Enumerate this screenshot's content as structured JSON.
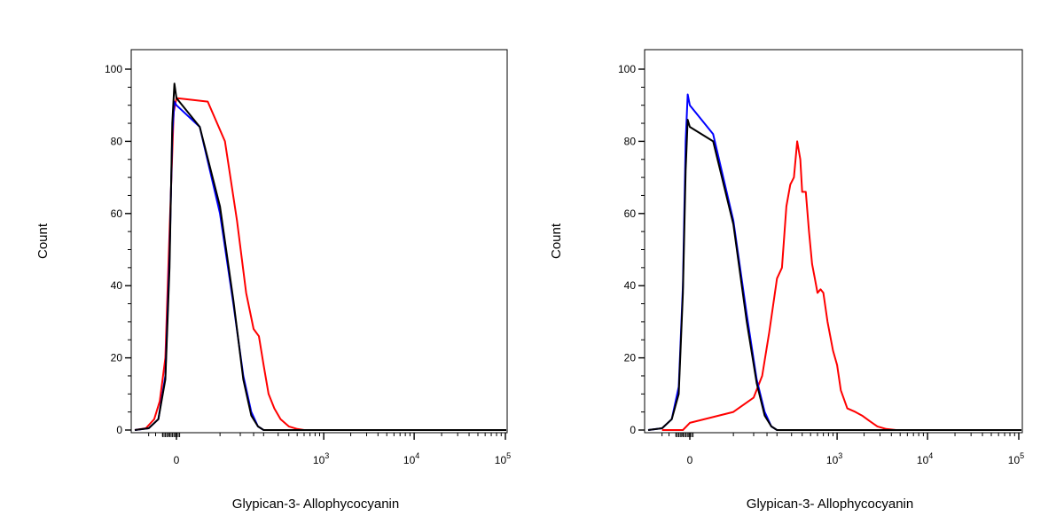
{
  "chart_data": [
    {
      "type": "line",
      "xlabel": "Glypican-3- Allophycocyanin",
      "ylabel": "Count",
      "ylim": [
        0,
        100
      ],
      "xscale": "biexponential",
      "grid": false,
      "y_ticks": [
        {
          "value": 0,
          "label": "0"
        },
        {
          "value": 20,
          "label": "20"
        },
        {
          "value": 40,
          "label": "40"
        },
        {
          "value": 60,
          "label": "60"
        },
        {
          "value": 80,
          "label": "80"
        },
        {
          "value": 100,
          "label": "100"
        }
      ],
      "x_ticks": [
        {
          "value": 0,
          "base": "0",
          "exp": ""
        },
        {
          "value": 1000,
          "base": "10",
          "exp": "3"
        },
        {
          "value": 10000,
          "base": "10",
          "exp": "4"
        },
        {
          "value": 100000,
          "base": "10",
          "exp": "5"
        }
      ],
      "series": [
        {
          "color": "#ff0000",
          "x": [
            -300,
            -220,
            -160,
            -120,
            -80,
            -50,
            -20,
            0,
            30,
            60,
            90,
            120,
            150,
            175,
            200,
            230,
            270,
            320,
            400,
            500,
            600,
            1000,
            10000,
            200000
          ],
          "y": [
            0,
            0.5,
            3,
            8,
            20,
            55,
            88,
            92,
            91,
            80,
            58,
            38,
            28,
            26,
            18,
            10,
            6,
            3,
            1,
            0.3,
            0,
            0,
            0,
            0
          ]
        },
        {
          "color": "#0000ff",
          "x": [
            -300,
            -200,
            -130,
            -80,
            -50,
            -30,
            -15,
            0,
            20,
            50,
            80,
            110,
            140,
            170,
            200,
            300,
            1000,
            200000
          ],
          "y": [
            0,
            0.5,
            3,
            15,
            48,
            82,
            91,
            90,
            84,
            60,
            35,
            15,
            5,
            1,
            0,
            0,
            0,
            0
          ]
        },
        {
          "color": "#000000",
          "x": [
            -300,
            -200,
            -130,
            -80,
            -50,
            -30,
            -15,
            0,
            20,
            50,
            80,
            110,
            140,
            170,
            200,
            300,
            1000,
            200000
          ],
          "y": [
            0,
            0.5,
            3,
            14,
            45,
            85,
            96,
            92,
            84,
            62,
            36,
            14,
            4,
            1,
            0,
            0,
            0,
            0
          ]
        }
      ]
    },
    {
      "type": "line",
      "xlabel": "Glypican-3- Allophycocyanin",
      "ylabel": "Count",
      "ylim": [
        0,
        100
      ],
      "xscale": "biexponential",
      "grid": false,
      "y_ticks": [
        {
          "value": 0,
          "label": "0"
        },
        {
          "value": 20,
          "label": "20"
        },
        {
          "value": 40,
          "label": "40"
        },
        {
          "value": 60,
          "label": "60"
        },
        {
          "value": 80,
          "label": "80"
        },
        {
          "value": 100,
          "label": "100"
        }
      ],
      "x_ticks": [
        {
          "value": 0,
          "base": "0",
          "exp": ""
        },
        {
          "value": 1000,
          "base": "10",
          "exp": "3"
        },
        {
          "value": 10000,
          "base": "10",
          "exp": "4"
        },
        {
          "value": 100000,
          "base": "10",
          "exp": "5"
        }
      ],
      "series": [
        {
          "color": "#ff0000",
          "x": [
            -200,
            -50,
            0,
            50,
            100,
            130,
            160,
            200,
            230,
            260,
            290,
            320,
            350,
            380,
            400,
            440,
            480,
            520,
            560,
            600,
            650,
            700,
            780,
            900,
            1000,
            1100,
            1300,
            1600,
            1900,
            2300,
            2800,
            3500,
            4500,
            5000,
            10000,
            200000
          ],
          "y": [
            0,
            0,
            2,
            5,
            9,
            15,
            27,
            42,
            45,
            62,
            68,
            70,
            80,
            75,
            66,
            66,
            55,
            46,
            42,
            38,
            39,
            38,
            30,
            22,
            18,
            11,
            6,
            5,
            4,
            2.5,
            1,
            0.3,
            0,
            0,
            0,
            0
          ]
        },
        {
          "color": "#0000ff",
          "x": [
            -300,
            -200,
            -130,
            -80,
            -50,
            -30,
            -15,
            0,
            20,
            50,
            80,
            110,
            140,
            170,
            200,
            300,
            1000,
            200000
          ],
          "y": [
            0,
            0.5,
            3,
            12,
            40,
            80,
            93,
            90,
            82,
            58,
            32,
            14,
            5,
            1,
            0,
            0,
            0,
            0
          ]
        },
        {
          "color": "#000000",
          "x": [
            -300,
            -200,
            -130,
            -80,
            -50,
            -30,
            -15,
            0,
            20,
            50,
            80,
            110,
            140,
            170,
            200,
            300,
            1000,
            200000
          ],
          "y": [
            0,
            0.5,
            3,
            10,
            38,
            72,
            86,
            84,
            80,
            57,
            30,
            13,
            4,
            1,
            0,
            0,
            0,
            0
          ]
        }
      ]
    }
  ]
}
